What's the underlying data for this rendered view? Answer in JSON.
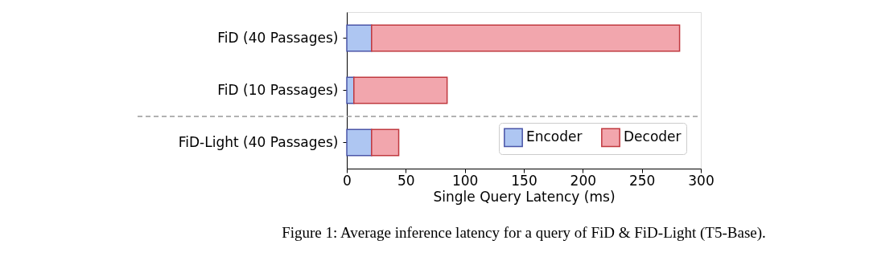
{
  "chart_data": {
    "type": "bar",
    "orientation": "horizontal",
    "stacked": true,
    "categories": [
      "FiD (40 Passages)",
      "FiD (10 Passages)",
      "FiD-Light (40 Passages)"
    ],
    "series": [
      {
        "name": "Encoder",
        "color": "#aec6f2",
        "values": [
          21,
          6,
          21
        ]
      },
      {
        "name": "Decoder",
        "color": "#f2a6ad",
        "values": [
          261,
          79,
          23
        ]
      }
    ],
    "xlabel": "Single Query Latency (ms)",
    "xlim": [
      0,
      300
    ],
    "xticks": [
      0,
      50,
      100,
      150,
      200,
      250,
      300
    ],
    "grid": false,
    "legend": "bottom right",
    "annotations": [
      "Figure 1: Average inference latency for a query of FiD & FiD-Light (T5-Base)."
    ]
  }
}
